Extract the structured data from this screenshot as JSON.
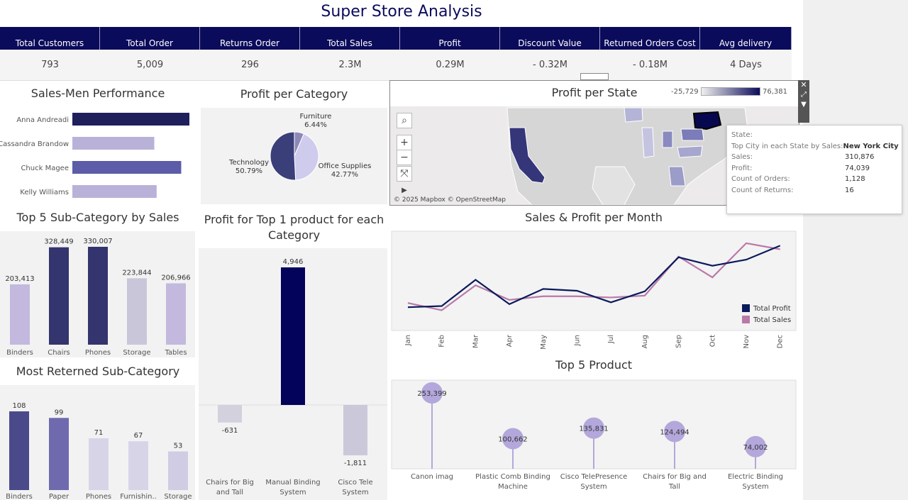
{
  "title": "Super Store Analysis",
  "kpis": [
    {
      "label": "Total Customers",
      "value": "793"
    },
    {
      "label": "Total Order",
      "value": "5,009"
    },
    {
      "label": "Returns Order",
      "value": "296"
    },
    {
      "label": "Total Sales",
      "value": "2.3M"
    },
    {
      "label": "Profit",
      "value": "0.29M"
    },
    {
      "label": "Discount Value",
      "value": "- 0.32M"
    },
    {
      "label": "Returned Orders Cost",
      "value": "- 0.18M"
    },
    {
      "label": "Avg delivery duration",
      "value": "4 Days"
    }
  ],
  "panels": {
    "salesmen": "Sales-Men Performance",
    "profit_category": "Profit per Category",
    "profit_state": "Profit per State",
    "top5_sub": "Top 5 Sub-Category by Sales",
    "top1_product": "Profit for Top 1 product for each Category",
    "sales_profit_month": "Sales & Profit per Month",
    "most_returned": "Most Reterned Sub-Category",
    "top5_product": "Top 5 Product"
  },
  "map": {
    "legend_min": "-25,729",
    "legend_max": "76,381",
    "attribution": "© 2025 Mapbox © OpenStreetMap",
    "tools": {
      "search": "⌕",
      "zoom_in": "+",
      "zoom_out": "−",
      "reset": "⤧",
      "play": "▶"
    }
  },
  "tooltip": [
    {
      "key": "State:",
      "value": ""
    },
    {
      "key": "Top City in each State by Sales:",
      "value": "New York City"
    },
    {
      "key": "Sales:",
      "value": "310,876"
    },
    {
      "key": "Profit:",
      "value": "74,039"
    },
    {
      "key": "Count of Orders:",
      "value": "1,128"
    },
    {
      "key": "Count of Returns:",
      "value": "16"
    }
  ],
  "chart_data": [
    {
      "type": "bar",
      "id": "salesmen",
      "orientation": "horizontal",
      "categories": [
        "Anna Andreadi",
        "Cassandra Brandow",
        "Chuck Magee",
        "Kelly Williams"
      ],
      "values": [
        100,
        70,
        93,
        72
      ],
      "colors": [
        "#1f1f5c",
        "#b9b1d8",
        "#5c5ca8",
        "#b9b1d8"
      ]
    },
    {
      "type": "pie",
      "id": "profit_category",
      "categories": [
        "Furniture",
        "Office Supplies",
        "Technology"
      ],
      "values": [
        6.44,
        42.77,
        50.79
      ],
      "labels": [
        "6.44%",
        "42.77%",
        "50.79%"
      ],
      "colors": [
        "#8e88b8",
        "#cfcbec",
        "#3a3f7a"
      ]
    },
    {
      "type": "bar",
      "id": "top5_sub",
      "categories": [
        "Binders",
        "Chairs",
        "Phones",
        "Storage",
        "Tables"
      ],
      "values": [
        203413,
        328449,
        330007,
        223844,
        206966
      ],
      "labels": [
        "203,413",
        "328,449",
        "330,007",
        "223,844",
        "206,966"
      ],
      "colors": [
        "#c3b9de",
        "#34346e",
        "#34346e",
        "#cac6da",
        "#c3b9de"
      ]
    },
    {
      "type": "bar",
      "id": "top1_product",
      "categories": [
        "Chairs for Big and Tall",
        "Manual Binding System",
        "Cisco Tele System"
      ],
      "values": [
        -631,
        4946,
        -1811
      ],
      "labels": [
        "-631",
        "4,946",
        "-1,811"
      ],
      "colors": [
        "#d3d1dd",
        "#03035c",
        "#cbc9d9"
      ]
    },
    {
      "type": "line",
      "id": "sales_profit_month",
      "categories": [
        "Jan",
        "Feb",
        "Mar",
        "Apr",
        "May",
        "Jun",
        "Jul",
        "Aug",
        "Sep",
        "Oct",
        "Nov",
        "Dec"
      ],
      "series": [
        {
          "name": "Total Profit",
          "color": "#0b1a5c",
          "values": [
            30,
            32,
            75,
            35,
            60,
            57,
            38,
            56,
            112,
            98,
            108,
            131
          ]
        },
        {
          "name": "Total Sales",
          "color": "#b97aa8",
          "values": [
            37,
            25,
            66,
            42,
            48,
            48,
            46,
            49,
            113,
            79,
            135,
            125
          ]
        }
      ]
    },
    {
      "type": "bar",
      "id": "most_returned",
      "categories": [
        "Binders",
        "Paper",
        "Phones",
        "Furnishin..",
        "Storage"
      ],
      "values": [
        108,
        99,
        71,
        67,
        53
      ],
      "labels": [
        "108",
        "99",
        "71",
        "67",
        "53"
      ],
      "colors": [
        "#4a4a8a",
        "#6f6aae",
        "#d8d4e8",
        "#d8d4e8",
        "#d0cce4"
      ]
    },
    {
      "type": "scatter",
      "id": "top5_product",
      "categories": [
        "Canon imag",
        "Plastic Comb Binding Machine",
        "Cisco TelePresence System",
        "Chairs for Big and Tall",
        "Electric Binding System"
      ],
      "values": [
        253399,
        100662,
        135831,
        124494,
        74002
      ],
      "labels": [
        "253,399",
        "100,662",
        "135,831",
        "124,494",
        "74,002"
      ],
      "color": "#b3a7db"
    }
  ]
}
